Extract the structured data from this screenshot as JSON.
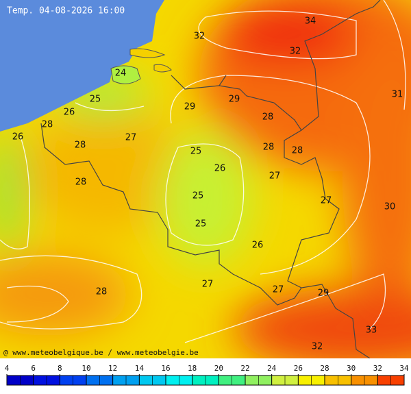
{
  "title": "Temp. 04-08-2026 16:00",
  "credit": "@ www.meteobelgique.be / www.meteobelgie.be",
  "isotherm_labels": [
    34,
    32,
    32,
    24,
    31,
    25,
    29,
    29,
    26,
    28,
    28,
    27,
    26,
    28,
    28,
    28,
    25,
    26,
    27,
    28,
    25,
    27,
    30,
    25,
    26,
    27,
    27,
    28,
    29,
    33,
    32
  ],
  "colorbar": {
    "ticks": [
      4,
      6,
      8,
      10,
      12,
      14,
      16,
      18,
      20,
      22,
      24,
      26,
      28,
      30,
      32,
      34
    ],
    "colors": [
      "#0000c8",
      "#0010e0",
      "#0040f0",
      "#0070f0",
      "#00a0f0",
      "#00c8f0",
      "#00f0f0",
      "#00f0c0",
      "#40f080",
      "#90f060",
      "#d0f040",
      "#f8f000",
      "#f8c000",
      "#f89000",
      "#f84000"
    ]
  }
}
